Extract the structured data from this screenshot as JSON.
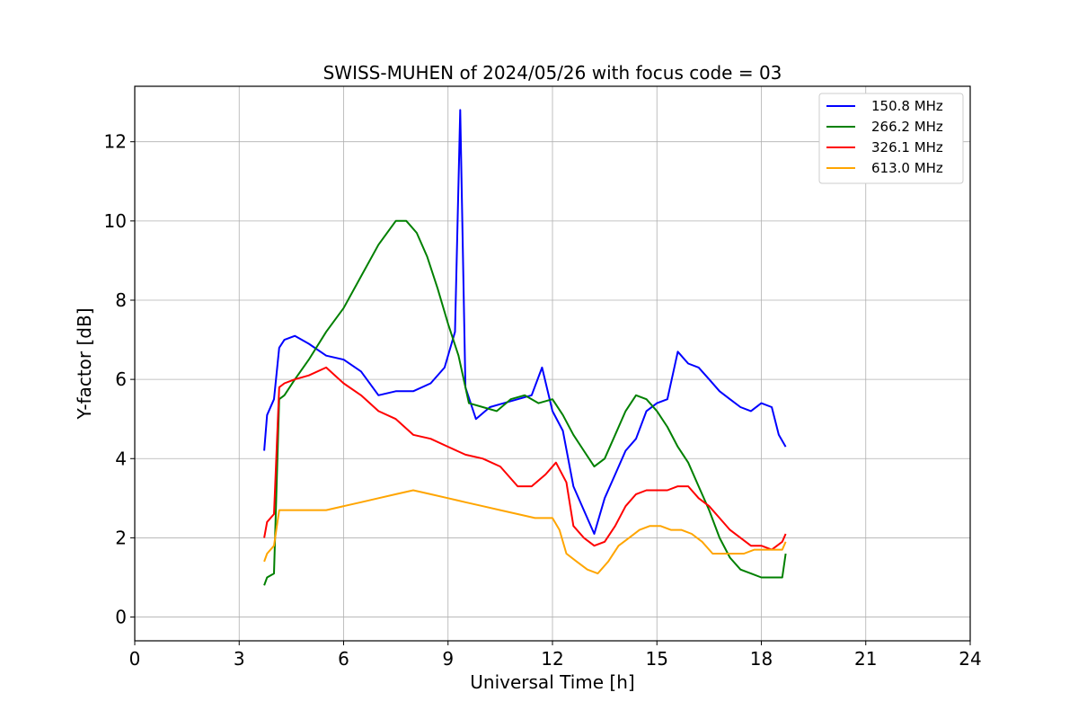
{
  "chart_data": {
    "type": "line",
    "title": "SWISS-MUHEN of 2024/05/26 with focus code = 03",
    "xlabel": "Universal Time [h]",
    "ylabel": "Y-factor [dB]",
    "xlim": [
      0,
      24
    ],
    "ylim": [
      -0.6,
      13.4
    ],
    "xticks": [
      0,
      3,
      6,
      9,
      12,
      15,
      18,
      21,
      24
    ],
    "yticks": [
      0,
      2,
      4,
      6,
      8,
      10,
      12
    ],
    "grid": true,
    "legend_position": "top-right",
    "series": [
      {
        "name": "150.8 MHz",
        "color": "#0000ff",
        "x": [
          3.72,
          3.8,
          4.0,
          4.15,
          4.3,
          4.6,
          5.0,
          5.5,
          6.0,
          6.5,
          7.0,
          7.5,
          8.0,
          8.5,
          8.9,
          9.2,
          9.35,
          9.5,
          9.8,
          10.2,
          10.6,
          11.0,
          11.4,
          11.7,
          12.0,
          12.3,
          12.6,
          12.9,
          13.2,
          13.5,
          13.8,
          14.1,
          14.4,
          14.7,
          15.0,
          15.3,
          15.6,
          15.9,
          16.2,
          16.5,
          16.8,
          17.1,
          17.4,
          17.7,
          18.0,
          18.3,
          18.5,
          18.7
        ],
        "y": [
          4.2,
          5.1,
          5.5,
          6.8,
          7.0,
          7.1,
          6.9,
          6.6,
          6.5,
          6.2,
          5.6,
          5.7,
          5.7,
          5.9,
          6.3,
          7.2,
          12.8,
          5.8,
          5.0,
          5.3,
          5.4,
          5.5,
          5.6,
          6.3,
          5.2,
          4.7,
          3.3,
          2.7,
          2.1,
          3.0,
          3.6,
          4.2,
          4.5,
          5.2,
          5.4,
          5.5,
          6.7,
          6.4,
          6.3,
          6.0,
          5.7,
          5.5,
          5.3,
          5.2,
          5.4,
          5.3,
          4.6,
          4.3
        ]
      },
      {
        "name": "266.2 MHz",
        "color": "#008000",
        "x": [
          3.72,
          3.8,
          4.0,
          4.15,
          4.3,
          4.6,
          5.0,
          5.5,
          6.0,
          6.5,
          7.0,
          7.5,
          7.8,
          8.1,
          8.4,
          8.7,
          9.0,
          9.3,
          9.6,
          10.0,
          10.4,
          10.8,
          11.2,
          11.6,
          12.0,
          12.3,
          12.6,
          12.9,
          13.2,
          13.5,
          13.8,
          14.1,
          14.4,
          14.7,
          15.0,
          15.3,
          15.6,
          15.9,
          16.2,
          16.5,
          16.8,
          17.1,
          17.4,
          17.7,
          18.0,
          18.3,
          18.6,
          18.7
        ],
        "y": [
          0.8,
          1.0,
          1.1,
          5.5,
          5.6,
          6.0,
          6.5,
          7.2,
          7.8,
          8.6,
          9.4,
          10.0,
          10.0,
          9.7,
          9.1,
          8.3,
          7.4,
          6.6,
          5.4,
          5.3,
          5.2,
          5.5,
          5.6,
          5.4,
          5.5,
          5.1,
          4.6,
          4.2,
          3.8,
          4.0,
          4.6,
          5.2,
          5.6,
          5.5,
          5.2,
          4.8,
          4.3,
          3.9,
          3.3,
          2.7,
          2.0,
          1.5,
          1.2,
          1.1,
          1.0,
          1.0,
          1.0,
          1.6
        ]
      },
      {
        "name": "326.1 MHz",
        "color": "#ff0000",
        "x": [
          3.72,
          3.8,
          4.0,
          4.15,
          4.3,
          4.6,
          5.0,
          5.5,
          6.0,
          6.5,
          7.0,
          7.5,
          8.0,
          8.5,
          9.0,
          9.5,
          10.0,
          10.5,
          11.0,
          11.4,
          11.8,
          12.1,
          12.4,
          12.6,
          12.9,
          13.2,
          13.5,
          13.8,
          14.1,
          14.4,
          14.7,
          15.0,
          15.3,
          15.6,
          15.9,
          16.2,
          16.5,
          16.8,
          17.1,
          17.4,
          17.7,
          18.0,
          18.3,
          18.6,
          18.7
        ],
        "y": [
          2.0,
          2.4,
          2.6,
          5.8,
          5.9,
          6.0,
          6.1,
          6.3,
          5.9,
          5.6,
          5.2,
          5.0,
          4.6,
          4.5,
          4.3,
          4.1,
          4.0,
          3.8,
          3.3,
          3.3,
          3.6,
          3.9,
          3.4,
          2.3,
          2.0,
          1.8,
          1.9,
          2.3,
          2.8,
          3.1,
          3.2,
          3.2,
          3.2,
          3.3,
          3.3,
          3.0,
          2.8,
          2.5,
          2.2,
          2.0,
          1.8,
          1.8,
          1.7,
          1.9,
          2.1
        ]
      },
      {
        "name": "613.0 MHz",
        "color": "#ffa500",
        "x": [
          3.72,
          3.8,
          4.0,
          4.15,
          4.5,
          5.0,
          5.5,
          6.0,
          6.5,
          7.0,
          7.5,
          8.0,
          8.5,
          9.0,
          9.5,
          10.0,
          10.5,
          11.0,
          11.5,
          12.0,
          12.2,
          12.4,
          12.7,
          13.0,
          13.3,
          13.6,
          13.9,
          14.2,
          14.5,
          14.8,
          15.1,
          15.4,
          15.7,
          16.0,
          16.3,
          16.6,
          16.9,
          17.2,
          17.5,
          17.8,
          18.1,
          18.4,
          18.6,
          18.7
        ],
        "y": [
          1.4,
          1.6,
          1.8,
          2.7,
          2.7,
          2.7,
          2.7,
          2.8,
          2.9,
          3.0,
          3.1,
          3.2,
          3.1,
          3.0,
          2.9,
          2.8,
          2.7,
          2.6,
          2.5,
          2.5,
          2.2,
          1.6,
          1.4,
          1.2,
          1.1,
          1.4,
          1.8,
          2.0,
          2.2,
          2.3,
          2.3,
          2.2,
          2.2,
          2.1,
          1.9,
          1.6,
          1.6,
          1.6,
          1.6,
          1.7,
          1.7,
          1.7,
          1.7,
          1.9
        ]
      }
    ]
  }
}
